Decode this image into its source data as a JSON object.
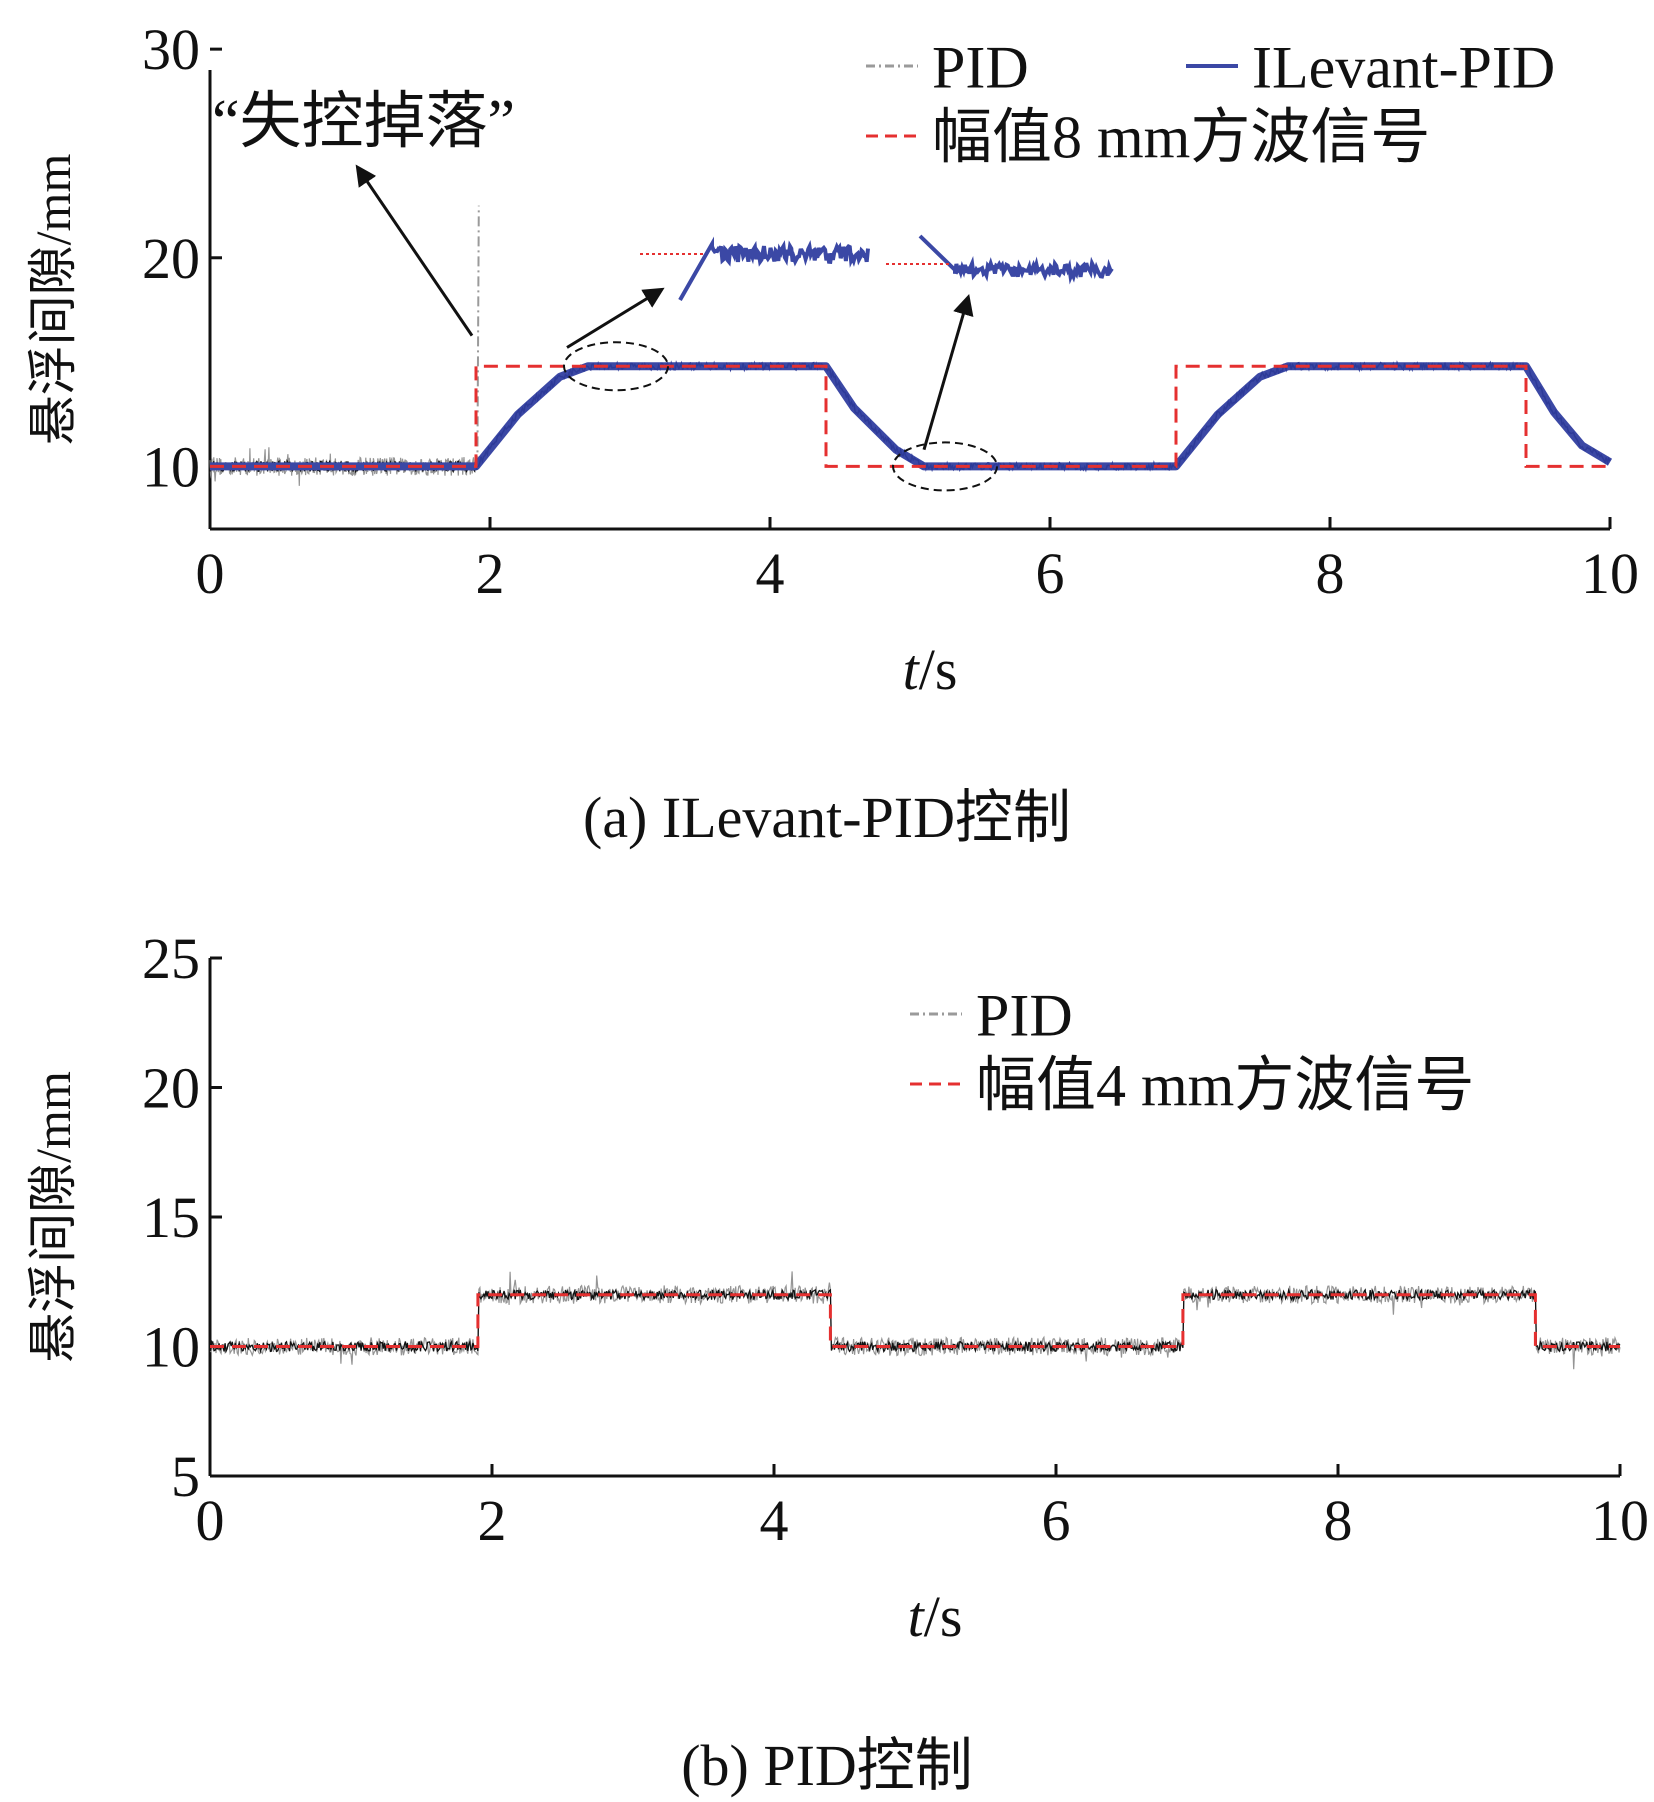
{
  "chart_data": [
    {
      "type": "line",
      "title": "",
      "caption": "(a) ILevant-PID控制",
      "xlabel_italic": "t",
      "xlabel_unit": "/s",
      "ylabel": "悬浮间隙/mm",
      "xlim": [
        0,
        10
      ],
      "ylim": [
        7,
        29
      ],
      "xticks": [
        "0",
        "2",
        "4",
        "6",
        "8",
        "10"
      ],
      "yticks": [
        "10",
        "20",
        "30"
      ],
      "ytick_values": [
        10,
        20,
        30
      ],
      "grid": false,
      "legend": {
        "placement": "top-right",
        "items": [
          {
            "label": "PID",
            "style": "dashdot",
            "color": "#9a9a9a"
          },
          {
            "label": "ILevant-PID",
            "style": "solid",
            "color": "#3b48a5"
          },
          {
            "label": "幅值8 mm方波信号",
            "style": "dashed",
            "color": "#e53030"
          }
        ]
      },
      "annotation": {
        "text": "“失控掉落”",
        "x": 1.9,
        "y": 22.5
      },
      "series": [
        {
          "name": "幅值8 mm方波信号",
          "color": "#e53030",
          "style": "dashed",
          "x": [
            0,
            1.9,
            1.9,
            4.4,
            4.4,
            6.9,
            6.9,
            9.4,
            9.4,
            10
          ],
          "y": [
            10,
            10,
            14.8,
            14.8,
            10,
            10,
            14.8,
            14.8,
            10,
            10
          ]
        },
        {
          "name": "ILevant-PID",
          "color": "#3b48a5",
          "style": "solid",
          "x": [
            0,
            1.9,
            2.2,
            2.5,
            2.7,
            4.4,
            4.6,
            4.9,
            5.1,
            6.9,
            7.2,
            7.5,
            7.7,
            9.4,
            9.6,
            9.8,
            10
          ],
          "y": [
            10,
            10,
            12.5,
            14.3,
            14.8,
            14.8,
            12.8,
            10.8,
            10,
            10,
            12.5,
            14.3,
            14.8,
            14.8,
            12.6,
            11,
            10.2
          ]
        },
        {
          "name": "PID",
          "color": "#9a9a9a",
          "style": "dashdot",
          "x": [
            0,
            1.9
          ],
          "y": [
            10,
            10
          ],
          "spike": {
            "x": 1.92,
            "y": 22.5
          }
        }
      ]
    },
    {
      "type": "line",
      "title": "",
      "caption": "(b) PID控制",
      "xlabel_italic": "t",
      "xlabel_unit": "/s",
      "ylabel": "悬浮间隙/mm",
      "xlim": [
        0,
        10
      ],
      "ylim": [
        5,
        25
      ],
      "xticks": [
        "0",
        "2",
        "4",
        "6",
        "8",
        "10"
      ],
      "yticks": [
        "5",
        "10",
        "15",
        "20",
        "25"
      ],
      "ytick_values": [
        5,
        10,
        15,
        20,
        25
      ],
      "grid": false,
      "legend": {
        "placement": "top-right",
        "items": [
          {
            "label": "PID",
            "style": "dashdot",
            "color": "#9a9a9a"
          },
          {
            "label": "幅值4 mm方波信号",
            "style": "dashed",
            "color": "#e53030"
          }
        ]
      },
      "series": [
        {
          "name": "幅值4 mm方波信号",
          "color": "#e53030",
          "style": "dashed",
          "x": [
            0,
            1.9,
            1.9,
            4.4,
            4.4,
            6.9,
            6.9,
            9.4,
            9.4,
            10
          ],
          "y": [
            10,
            10,
            12,
            12,
            10,
            10,
            12,
            12,
            10,
            10
          ]
        },
        {
          "name": "PID",
          "color": "#9a9a9a",
          "style": "dashdot",
          "x": [
            0,
            1.9,
            1.9,
            4.4,
            4.4,
            6.9,
            6.9,
            9.4,
            9.4,
            10
          ],
          "y": [
            10,
            10,
            12,
            12,
            10,
            10,
            12,
            12,
            10,
            10
          ]
        }
      ]
    }
  ]
}
